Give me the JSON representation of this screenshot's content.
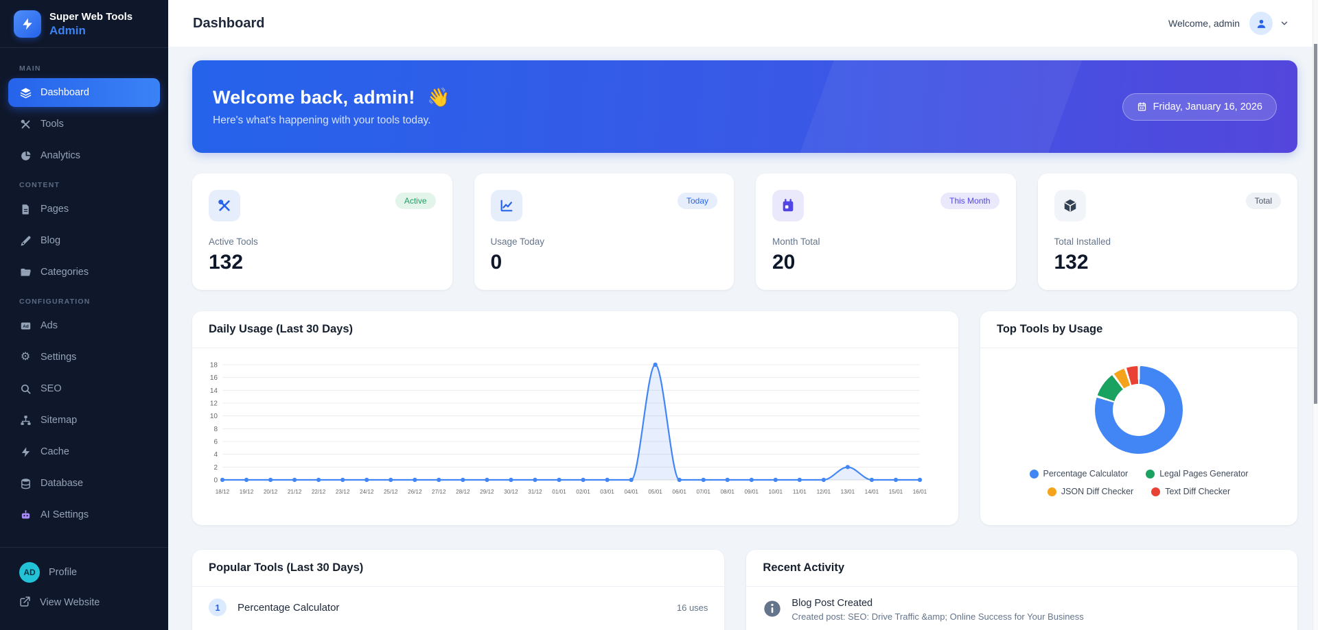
{
  "app": {
    "accent": "#2563eb",
    "sidebar_bg": "#0f172a"
  },
  "sidebar": {
    "brand_name": "Super Web Tools",
    "brand_sub": "Admin",
    "sections": [
      {
        "label": "MAIN"
      },
      {
        "label": "CONTENT"
      },
      {
        "label": "CONFIGURATION"
      }
    ],
    "items": {
      "dashboard": "Dashboard",
      "tools": "Tools",
      "analytics": "Analytics",
      "pages": "Pages",
      "blog": "Blog",
      "categories": "Categories",
      "ads": "Ads",
      "settings": "Settings",
      "seo": "SEO",
      "sitemap": "Sitemap",
      "cache": "Cache",
      "database": "Database",
      "ai_settings": "AI Settings",
      "profile": "Profile",
      "view_website": "View Website"
    },
    "avatar_initials": "AD"
  },
  "header": {
    "title": "Dashboard",
    "welcome": "Welcome, admin"
  },
  "banner": {
    "title": "Welcome back, admin!",
    "emoji": "👋",
    "subtitle": "Here's what's happening with your tools today.",
    "date": "Friday, January 16, 2026"
  },
  "stats": [
    {
      "label": "Active Tools",
      "value": "132",
      "badge": "Active",
      "icon": "tools-icon"
    },
    {
      "label": "Usage Today",
      "value": "0",
      "badge": "Today",
      "icon": "chart-line-icon"
    },
    {
      "label": "Month Total",
      "value": "20",
      "badge": "This Month",
      "icon": "calendar-icon"
    },
    {
      "label": "Total Installed",
      "value": "132",
      "badge": "Total",
      "icon": "cube-icon"
    }
  ],
  "chart_data": [
    {
      "type": "line",
      "title": "Daily Usage (Last 30 Days)",
      "x": [
        "18/12",
        "19/12",
        "20/12",
        "21/12",
        "22/12",
        "23/12",
        "24/12",
        "25/12",
        "26/12",
        "27/12",
        "28/12",
        "29/12",
        "30/12",
        "31/12",
        "01/01",
        "02/01",
        "03/01",
        "04/01",
        "05/01",
        "06/01",
        "07/01",
        "08/01",
        "09/01",
        "10/01",
        "11/01",
        "12/01",
        "13/01",
        "14/01",
        "15/01",
        "16/01"
      ],
      "series": [
        {
          "name": "Daily Usage",
          "values": [
            0,
            0,
            0,
            0,
            0,
            0,
            0,
            0,
            0,
            0,
            0,
            0,
            0,
            0,
            0,
            0,
            0,
            0,
            18,
            0,
            0,
            0,
            0,
            0,
            0,
            0,
            2,
            0,
            0,
            0
          ]
        }
      ],
      "ylim": [
        0,
        18
      ],
      "y_ticks": [
        0,
        2,
        4,
        6,
        8,
        10,
        12,
        14,
        16,
        18
      ],
      "grid": true,
      "legend_position": "none",
      "line_color": "#4285f4",
      "fill_color": "rgba(66,133,244,0.13)"
    },
    {
      "type": "pie",
      "title": "Top Tools by Usage",
      "labels": [
        "Percentage Calculator",
        "Legal Pages Generator",
        "JSON Diff Checker",
        "Text Diff Checker"
      ],
      "values": [
        16,
        2,
        1,
        1
      ],
      "colors": [
        "#4285f4",
        "#1aa260",
        "#f5a31a",
        "#e94235"
      ],
      "legend_position": "bottom"
    }
  ],
  "popular_tools": {
    "title": "Popular Tools (Last 30 Days)",
    "rows": [
      {
        "rank": "1",
        "name": "Percentage Calculator",
        "uses": "16 uses"
      }
    ]
  },
  "recent_activity": {
    "title": "Recent Activity",
    "items": [
      {
        "title": "Blog Post Created",
        "desc": "Created post: SEO: Drive Traffic &amp; Online Success for Your Business"
      }
    ]
  }
}
